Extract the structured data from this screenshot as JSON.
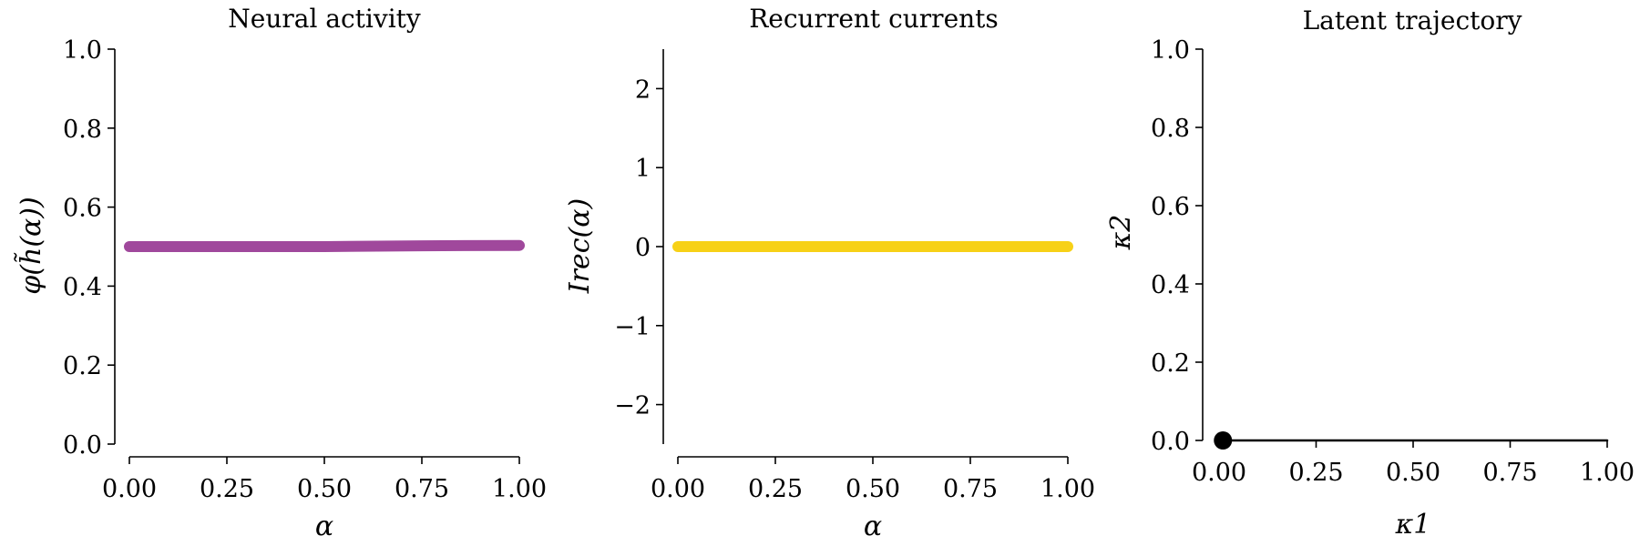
{
  "chart_data": [
    {
      "type": "line",
      "title": "Neural activity",
      "xlabel": "α",
      "ylabel": "φ(h̃(α))",
      "xlim": [
        0,
        1
      ],
      "ylim": [
        0,
        1
      ],
      "xticks": [
        0,
        0.25,
        0.5,
        0.75,
        1
      ],
      "xtick_labels": [
        "0.00",
        "0.25",
        "0.50",
        "0.75",
        "1.00"
      ],
      "yticks": [
        0,
        0.2,
        0.4,
        0.6,
        0.8,
        1.0
      ],
      "ytick_labels": [
        "0.0",
        "0.2",
        "0.4",
        "0.6",
        "0.8",
        "1.0"
      ],
      "grid": false,
      "series": [
        {
          "x": [
            0,
            0.25,
            0.5,
            0.75,
            1.0
          ],
          "y": [
            0.5,
            0.5,
            0.5,
            0.502,
            0.503
          ],
          "color": "#a0489c"
        }
      ]
    },
    {
      "type": "line",
      "title": "Recurrent currents",
      "xlabel": "α",
      "ylabel": "Irec(α)",
      "xlim": [
        0,
        1
      ],
      "ylim": [
        -2.5,
        2.5
      ],
      "xticks": [
        0,
        0.25,
        0.5,
        0.75,
        1
      ],
      "xtick_labels": [
        "0.00",
        "0.25",
        "0.50",
        "0.75",
        "1.00"
      ],
      "yticks": [
        -2,
        -1,
        0,
        1,
        2
      ],
      "ytick_labels": [
        "−2",
        "−1",
        "0",
        "1",
        "2"
      ],
      "grid": false,
      "series": [
        {
          "x": [
            0,
            0.25,
            0.5,
            0.75,
            1.0
          ],
          "y": [
            0,
            0,
            0,
            0,
            0
          ],
          "color": "#f7d117"
        }
      ]
    },
    {
      "type": "line",
      "title": "Latent trajectory",
      "xlabel": "κ1",
      "ylabel": "κ2",
      "xlim": [
        0,
        1
      ],
      "ylim": [
        0,
        1
      ],
      "xticks": [
        0,
        0.25,
        0.5,
        0.75,
        1
      ],
      "xtick_labels": [
        "0.00",
        "0.25",
        "0.50",
        "0.75",
        "1.00"
      ],
      "yticks": [
        0,
        0.2,
        0.4,
        0.6,
        0.8,
        1.0
      ],
      "ytick_labels": [
        "0.0",
        "0.2",
        "0.4",
        "0.6",
        "0.8",
        "1.0"
      ],
      "grid": false,
      "series": [
        {
          "x": [
            0,
            1.0
          ],
          "y": [
            0,
            0
          ],
          "color": "#000000"
        }
      ],
      "markers": [
        {
          "x": 0.01,
          "y": 0.0,
          "color": "#000000"
        }
      ]
    }
  ]
}
